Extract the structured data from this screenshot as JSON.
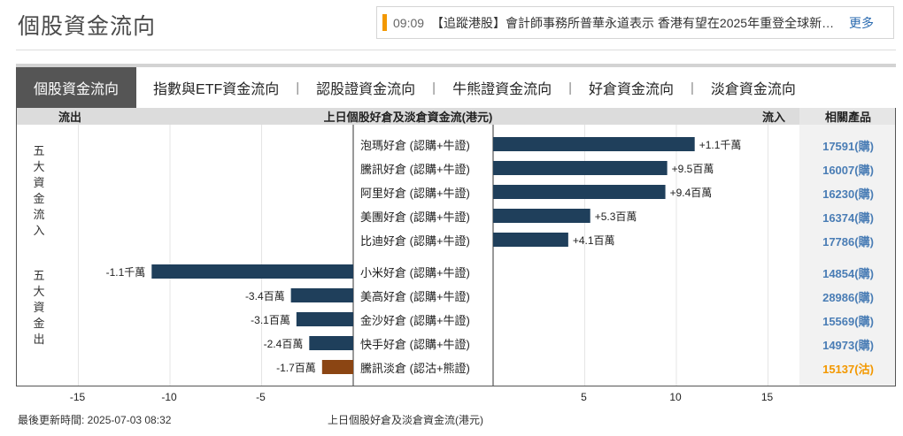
{
  "page": {
    "title": "個股資金流向",
    "ticker": {
      "time": "09:09",
      "text": "【追蹤港股】會計師事務所普華永道表示 香港有望在2025年重登全球新股集資額首位",
      "more": "更多"
    },
    "footer": {
      "updated": "最後更新時間: 2025-07-03 08:32",
      "caption": "上日個股好倉及淡倉資金流(港元)"
    }
  },
  "tabs": [
    {
      "label": "個股資金流向",
      "active": true
    },
    {
      "label": "指數與ETF資金流向",
      "active": false
    },
    {
      "label": "認股證資金流向",
      "active": false
    },
    {
      "label": "牛熊證資金流向",
      "active": false
    },
    {
      "label": "好倉資金流向",
      "active": false
    },
    {
      "label": "淡倉資金流向",
      "active": false
    }
  ],
  "tab_separator": "|",
  "chart_data": {
    "type": "bar",
    "orientation": "horizontal-diverging",
    "header": {
      "left": "流出",
      "center": "上日個股好倉及淡倉資金流(港元)",
      "right": "流入",
      "products": "相關產品"
    },
    "group_labels": {
      "inflow": "五大資金流入",
      "outflow": "五大資金出"
    },
    "unit": "百萬港元",
    "xlim": [
      -18,
      18
    ],
    "xticks": [
      -15,
      -10,
      -5,
      5,
      10,
      15
    ],
    "colors": {
      "bull": "#1f3f5b",
      "bear": "#8b4513",
      "product": "#4a7db5",
      "product_bear": "#f39800"
    },
    "rows": [
      {
        "name": "泡瑪好倉 (認購+牛證)",
        "value": 11.0,
        "label": "+1.1千萬",
        "product": "17591(購)",
        "type": "bull"
      },
      {
        "name": "騰訊好倉 (認購+牛證)",
        "value": 9.5,
        "label": "+9.5百萬",
        "product": "16007(購)",
        "type": "bull"
      },
      {
        "name": "阿里好倉 (認購+牛證)",
        "value": 9.4,
        "label": "+9.4百萬",
        "product": "16230(購)",
        "type": "bull"
      },
      {
        "name": "美團好倉 (認購+牛證)",
        "value": 5.3,
        "label": "+5.3百萬",
        "product": "16374(購)",
        "type": "bull"
      },
      {
        "name": "比迪好倉 (認購+牛證)",
        "value": 4.1,
        "label": "+4.1百萬",
        "product": "17786(購)",
        "type": "bull"
      },
      {
        "name": "小米好倉 (認購+牛證)",
        "value": -11.0,
        "label": "-1.1千萬",
        "product": "14854(購)",
        "type": "bull"
      },
      {
        "name": "美高好倉 (認購+牛證)",
        "value": -3.4,
        "label": "-3.4百萬",
        "product": "28986(購)",
        "type": "bull"
      },
      {
        "name": "金沙好倉 (認購+牛證)",
        "value": -3.1,
        "label": "-3.1百萬",
        "product": "15569(購)",
        "type": "bull"
      },
      {
        "name": "快手好倉 (認購+牛證)",
        "value": -2.4,
        "label": "-2.4百萬",
        "product": "14973(購)",
        "type": "bull"
      },
      {
        "name": "騰訊淡倉 (認沽+熊證)",
        "value": -1.7,
        "label": "-1.7百萬",
        "product": "15137(沽)",
        "type": "bear"
      }
    ]
  }
}
